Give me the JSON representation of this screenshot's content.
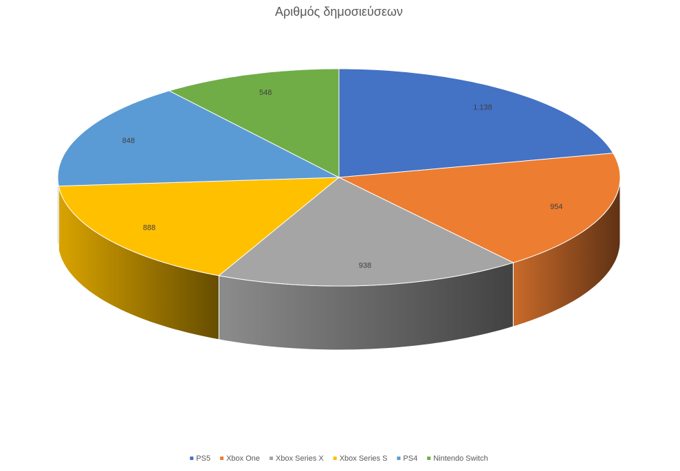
{
  "chart_data": {
    "type": "pie",
    "title": "Αριθμός δημοσιεύσεων",
    "categories": [
      "PS5",
      "Xbox One",
      "Xbox Series X",
      "Xbox Series S",
      "PS4",
      "Nintendo Switch"
    ],
    "values": [
      1138,
      954,
      938,
      888,
      848,
      548
    ],
    "value_labels": [
      "1.138",
      "954",
      "938",
      "888",
      "848",
      "548"
    ],
    "colors": [
      "#4472c4",
      "#ed7d31",
      "#a5a5a5",
      "#ffc000",
      "#5b9bd5",
      "#70ad47"
    ],
    "legend": "bottom"
  }
}
